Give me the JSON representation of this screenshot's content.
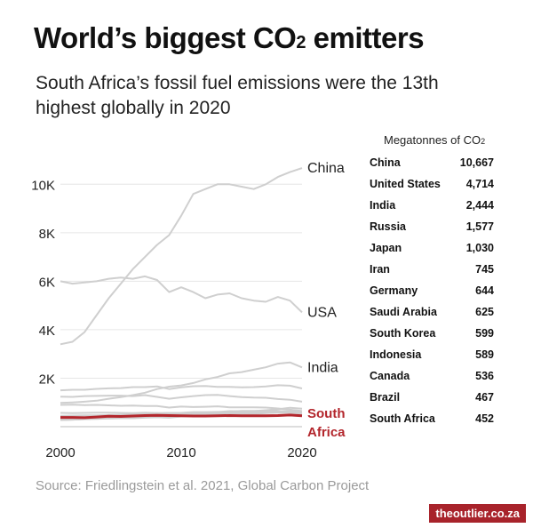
{
  "title_main": "World’s biggest CO",
  "title_sub": "2",
  "title_end": " emitters",
  "subtitle": "South Africa’s fossil fuel emissions were the 13th highest globally in 2020",
  "table_header_main": "Megatonnes of CO",
  "table_header_sub": "2",
  "source": "Source: Friedlingstein et al. 2021, Global Carbon Project",
  "brand": "theoutlier.co.za",
  "table": [
    {
      "country": "China",
      "value": "10,667"
    },
    {
      "country": "United States",
      "value": "4,714"
    },
    {
      "country": "India",
      "value": "2,444"
    },
    {
      "country": "Russia",
      "value": "1,577"
    },
    {
      "country": "Japan",
      "value": "1,030"
    },
    {
      "country": "Iran",
      "value": "745"
    },
    {
      "country": "Germany",
      "value": "644"
    },
    {
      "country": "Saudi Arabia",
      "value": "625"
    },
    {
      "country": "South Korea",
      "value": "599"
    },
    {
      "country": "Indonesia",
      "value": "589"
    },
    {
      "country": "Canada",
      "value": "536"
    },
    {
      "country": "Brazil",
      "value": "467"
    },
    {
      "country": "South Africa",
      "value": "452"
    }
  ],
  "colors": {
    "highlight": "#b3262c",
    "line": "#cfcfcf",
    "grid": "#e6e6e6",
    "brand": "#a8232b"
  },
  "chart_data": {
    "type": "line",
    "xlim": [
      2000,
      2020
    ],
    "ylim": [
      0,
      11000
    ],
    "x_ticks": [
      2000,
      2010,
      2020
    ],
    "x_tick_labels": [
      "2000",
      "2010",
      "2020"
    ],
    "y_ticks": [
      2000,
      4000,
      6000,
      8000,
      10000
    ],
    "y_tick_labels": [
      "2K",
      "4K",
      "6K",
      "8K",
      "10K"
    ],
    "x": [
      2000,
      2001,
      2002,
      2003,
      2004,
      2005,
      2006,
      2007,
      2008,
      2009,
      2010,
      2011,
      2012,
      2013,
      2014,
      2015,
      2016,
      2017,
      2018,
      2019,
      2020
    ],
    "series": [
      {
        "name": "China",
        "label": "China",
        "highlight": false,
        "values": [
          3400,
          3500,
          3900,
          4600,
          5300,
          5900,
          6500,
          7000,
          7500,
          7900,
          8700,
          9600,
          9800,
          10000,
          10000,
          9900,
          9800,
          10000,
          10300,
          10500,
          10667
        ]
      },
      {
        "name": "USA",
        "label": "USA",
        "highlight": false,
        "values": [
          6000,
          5900,
          5950,
          6000,
          6100,
          6150,
          6100,
          6200,
          6050,
          5550,
          5750,
          5550,
          5300,
          5450,
          5500,
          5300,
          5200,
          5150,
          5350,
          5200,
          4714
        ]
      },
      {
        "name": "India",
        "label": "India",
        "highlight": false,
        "values": [
          980,
          1000,
          1030,
          1070,
          1150,
          1220,
          1300,
          1400,
          1550,
          1650,
          1700,
          1800,
          1950,
          2050,
          2200,
          2250,
          2350,
          2450,
          2600,
          2650,
          2444
        ]
      },
      {
        "name": "Russia",
        "label": "",
        "highlight": false,
        "values": [
          1500,
          1520,
          1520,
          1560,
          1580,
          1590,
          1630,
          1630,
          1660,
          1550,
          1620,
          1670,
          1680,
          1640,
          1640,
          1620,
          1630,
          1660,
          1710,
          1690,
          1577
        ]
      },
      {
        "name": "Japan",
        "label": "",
        "highlight": false,
        "values": [
          1240,
          1230,
          1260,
          1270,
          1280,
          1280,
          1260,
          1300,
          1230,
          1150,
          1210,
          1260,
          1300,
          1310,
          1260,
          1220,
          1200,
          1190,
          1140,
          1110,
          1030
        ]
      },
      {
        "name": "Iran",
        "label": "",
        "highlight": false,
        "values": [
          360,
          380,
          400,
          420,
          450,
          480,
          510,
          530,
          560,
          570,
          570,
          580,
          580,
          600,
          640,
          630,
          640,
          680,
          720,
          780,
          745
        ]
      },
      {
        "name": "Germany",
        "label": "",
        "highlight": false,
        "values": [
          900,
          910,
          890,
          900,
          880,
          860,
          870,
          850,
          850,
          790,
          830,
          810,
          820,
          840,
          800,
          800,
          800,
          790,
          750,
          700,
          644
        ]
      },
      {
        "name": "Saudi Arabia",
        "label": "",
        "highlight": false,
        "values": [
          280,
          290,
          310,
          330,
          360,
          380,
          400,
          410,
          440,
          470,
          510,
          530,
          560,
          580,
          620,
          650,
          650,
          650,
          640,
          630,
          625
        ]
      },
      {
        "name": "South Korea",
        "label": "",
        "highlight": false,
        "values": [
          450,
          460,
          470,
          470,
          480,
          490,
          490,
          510,
          520,
          520,
          570,
          600,
          600,
          610,
          600,
          610,
          610,
          630,
          640,
          620,
          599
        ]
      },
      {
        "name": "Indonesia",
        "label": "",
        "highlight": false,
        "values": [
          270,
          290,
          310,
          320,
          340,
          350,
          360,
          390,
          410,
          420,
          430,
          460,
          520,
          480,
          510,
          500,
          530,
          560,
          590,
          640,
          589
        ]
      },
      {
        "name": "Canada",
        "label": "",
        "highlight": false,
        "values": [
          570,
          560,
          570,
          580,
          580,
          570,
          560,
          580,
          560,
          530,
          550,
          560,
          560,
          570,
          570,
          570,
          560,
          570,
          580,
          580,
          536
        ]
      },
      {
        "name": "Brazil",
        "label": "",
        "highlight": false,
        "values": [
          340,
          340,
          330,
          330,
          340,
          350,
          350,
          370,
          390,
          370,
          420,
          440,
          470,
          500,
          520,
          500,
          470,
          470,
          460,
          460,
          467
        ]
      },
      {
        "name": "South Africa",
        "label": "South Africa",
        "highlight": true,
        "values": [
          380,
          380,
          370,
          400,
          430,
          420,
          440,
          460,
          470,
          460,
          450,
          440,
          440,
          450,
          460,
          450,
          450,
          450,
          460,
          480,
          452
        ]
      }
    ]
  }
}
